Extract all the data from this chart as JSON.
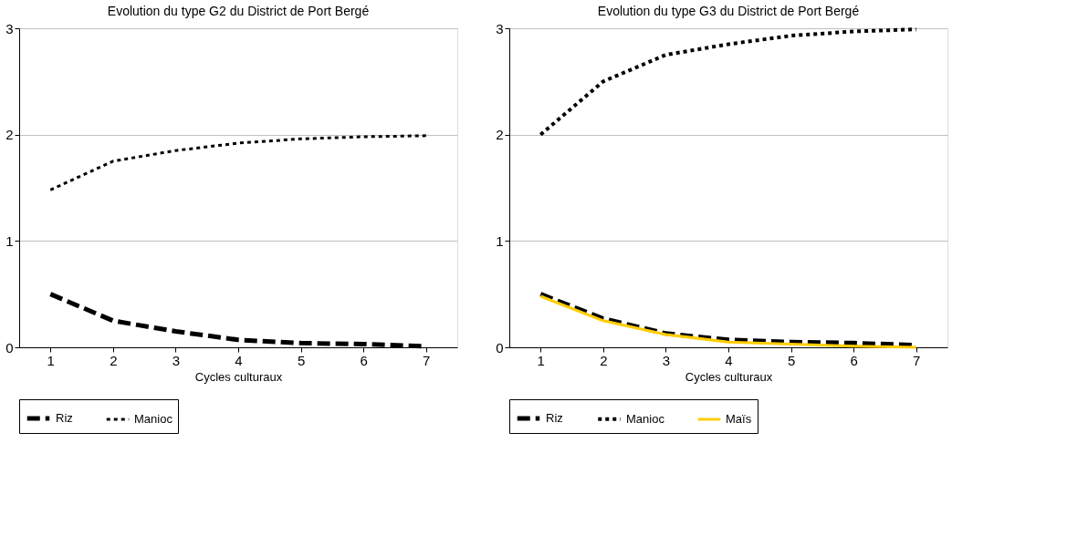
{
  "chart_data": [
    {
      "type": "line",
      "title": "Evolution du type G2 du District de Port Bergé",
      "xlabel": "Cycles culturaux",
      "categories": [
        "1",
        "2",
        "3",
        "4",
        "5",
        "6",
        "7"
      ],
      "ylim": [
        0,
        3
      ],
      "yticks": [
        0,
        1,
        2,
        3
      ],
      "grid": "y",
      "legend": "bottom",
      "marker": "none",
      "series": [
        {
          "name": "Riz",
          "color": "#000000",
          "line_style": "dashed",
          "values": [
            0.5,
            0.25,
            0.15,
            0.07,
            0.04,
            0.03,
            0.01
          ]
        },
        {
          "name": "Manioc",
          "color": "#000000",
          "line_style": "dotted",
          "values": [
            1.48,
            1.75,
            1.85,
            1.92,
            1.96,
            1.98,
            1.99
          ]
        }
      ]
    },
    {
      "type": "line",
      "title": "Evolution du type G3 du District de Port Bergé",
      "xlabel": "Cycles culturaux",
      "categories": [
        "1",
        "2",
        "3",
        "4",
        "5",
        "6",
        "7"
      ],
      "ylim": [
        0,
        3
      ],
      "yticks": [
        0,
        1,
        2,
        3
      ],
      "grid": "y",
      "legend": "bottom",
      "marker": "none",
      "series": [
        {
          "name": "Riz",
          "color": "#000000",
          "line_style": "dashed",
          "values": [
            0.5,
            0.27,
            0.13,
            0.07,
            0.05,
            0.04,
            0.02
          ]
        },
        {
          "name": "Manioc",
          "color": "#000000",
          "line_style": "dotted",
          "values": [
            2.0,
            2.5,
            2.75,
            2.85,
            2.93,
            2.97,
            2.99
          ]
        },
        {
          "name": "Maïs",
          "color": "#ffcc00",
          "line_style": "solid",
          "values": [
            0.48,
            0.25,
            0.12,
            0.05,
            0.03,
            0.01,
            0.0
          ]
        }
      ]
    }
  ]
}
